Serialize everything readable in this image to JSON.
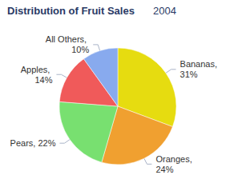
{
  "chart_data": {
    "type": "pie",
    "title": "Distribution of Fruit Sales",
    "subtitle": "2004",
    "categories": [
      "Bananas",
      "Oranges",
      "Pears",
      "Apples",
      "All Others"
    ],
    "values": [
      31,
      24,
      22,
      14,
      10
    ],
    "value_labels": [
      "Bananas, 31%",
      "Oranges, 24%",
      "Pears, 22%",
      "Apples, 14%",
      "All Others, 10%"
    ],
    "colors": [
      "#e6dc10",
      "#f0a030",
      "#78e070",
      "#f05a5a",
      "#88aaee"
    ],
    "data_labels": true
  }
}
